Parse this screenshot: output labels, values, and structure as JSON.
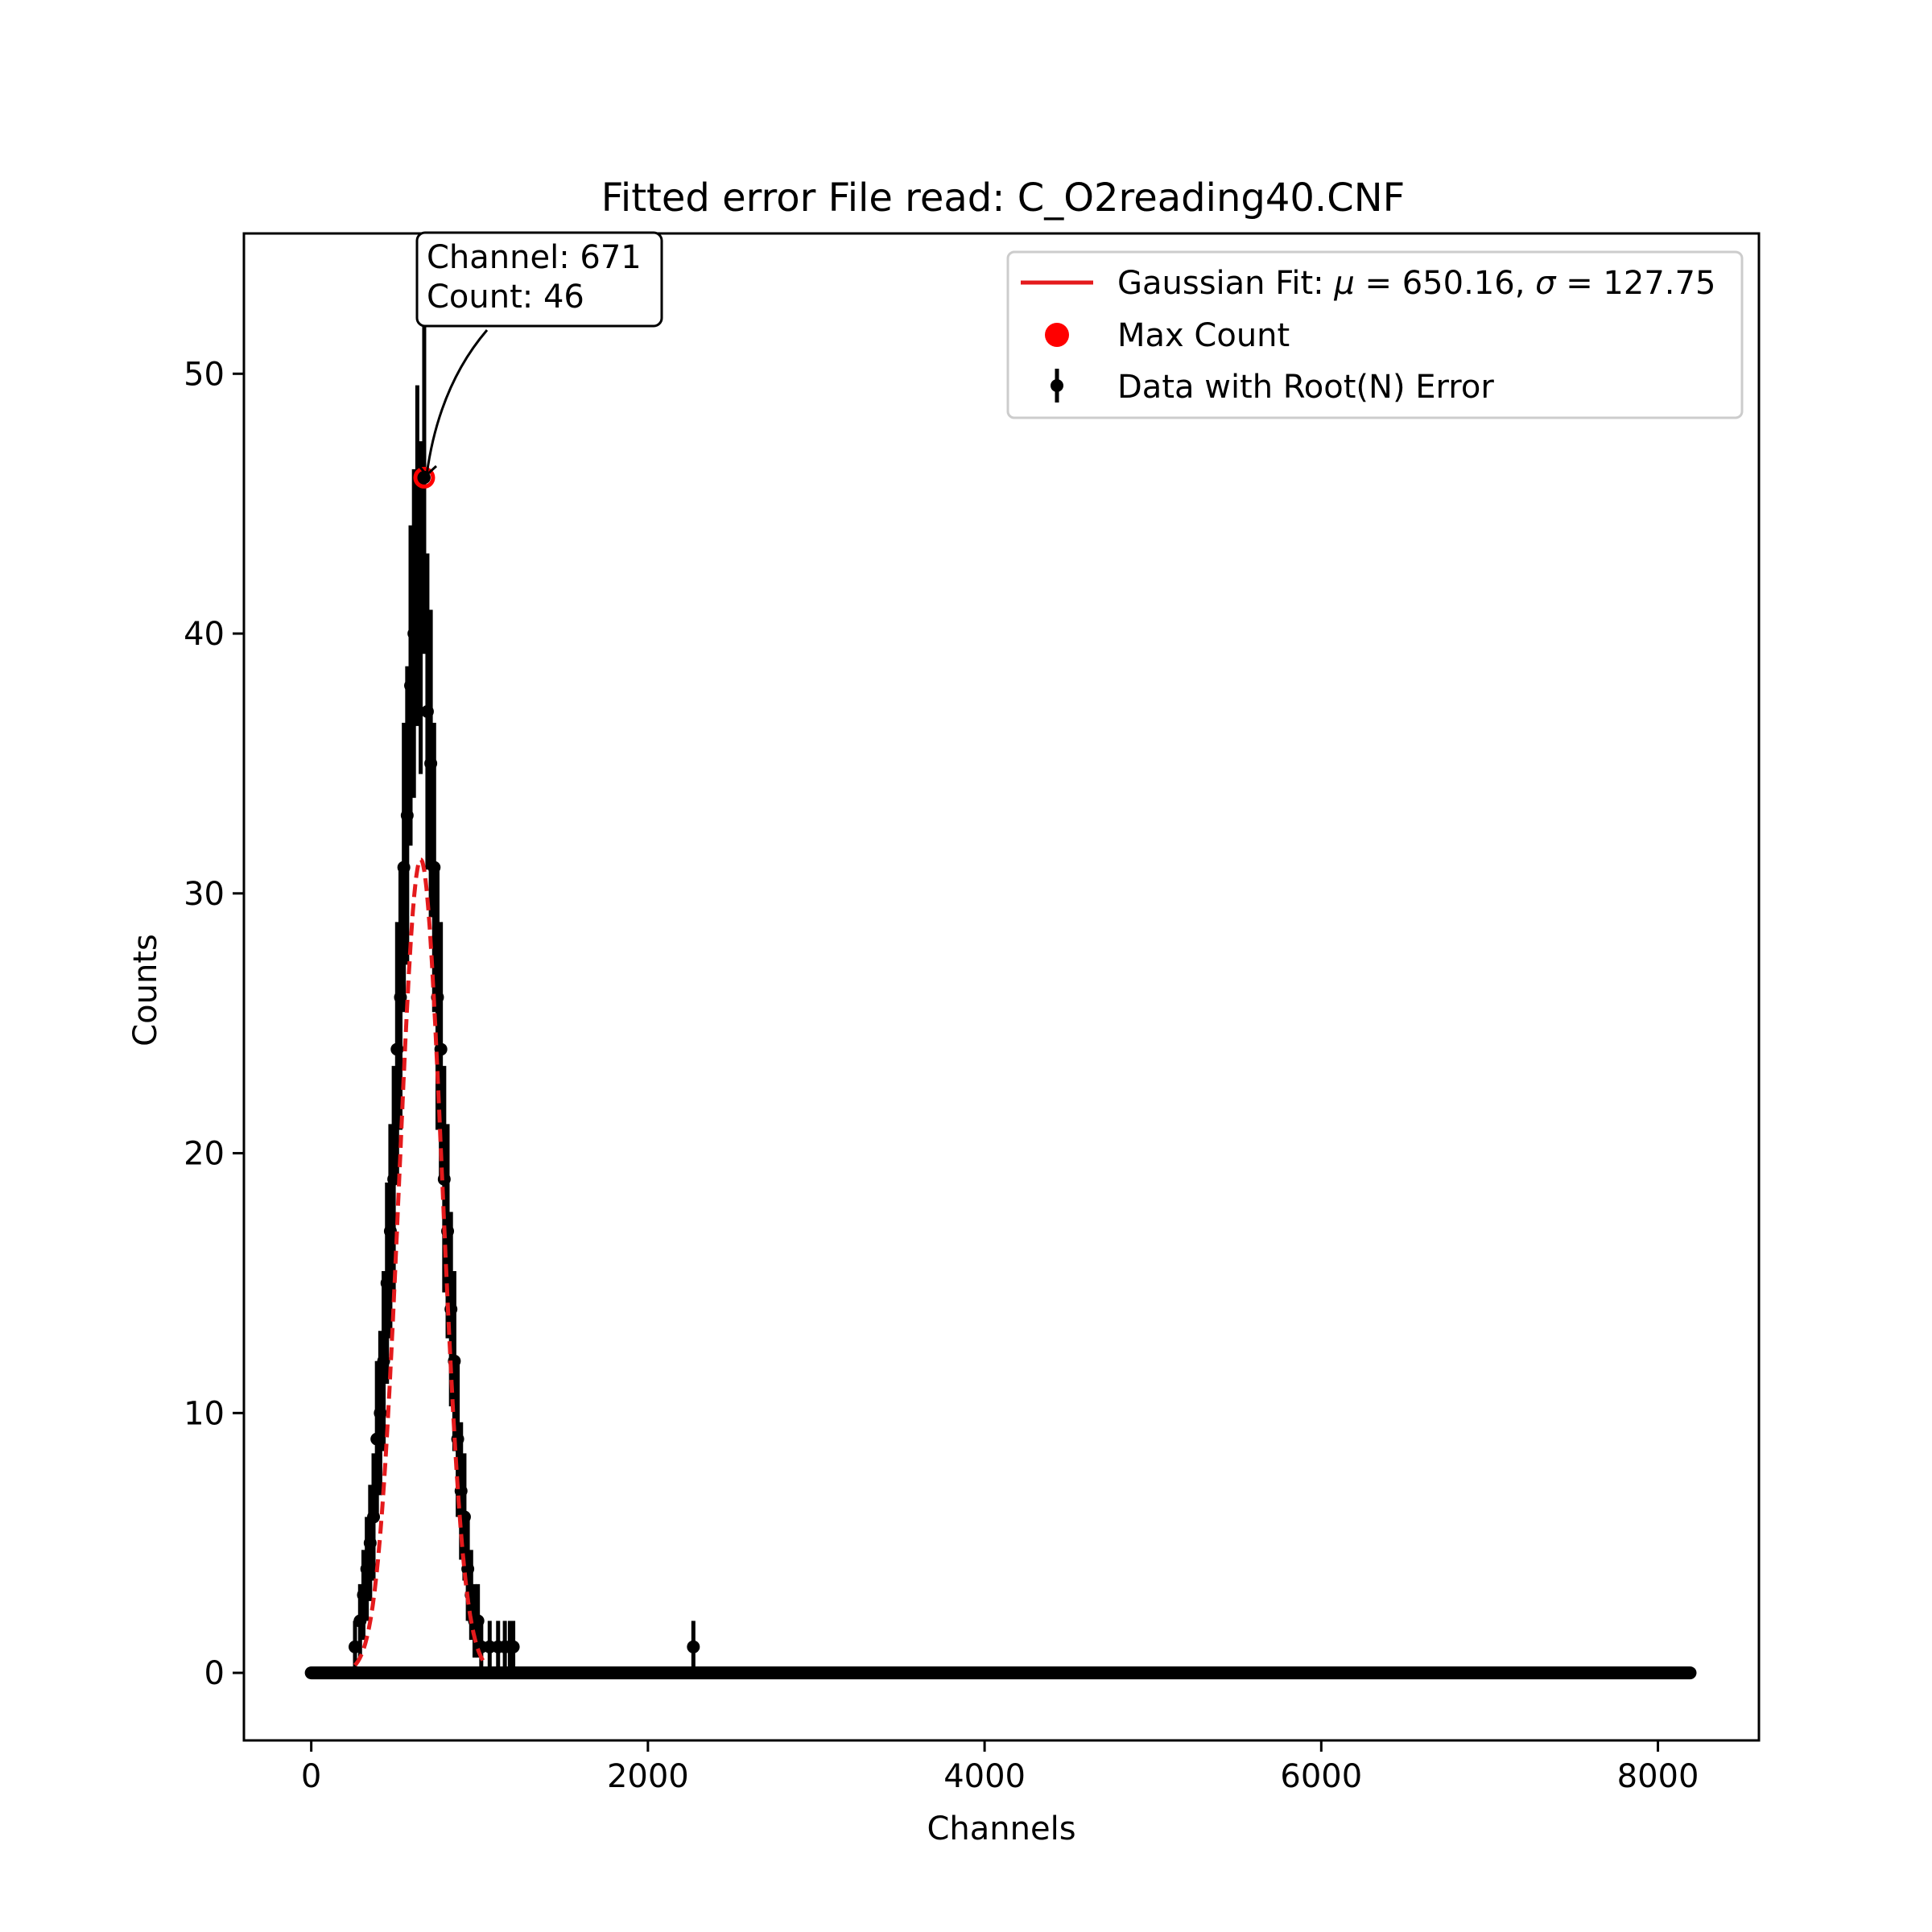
{
  "chart_data": {
    "type": "scatter",
    "title": "Fitted error File read: C_O2reading40.CNF",
    "xlabel": "Channels",
    "ylabel": "Counts",
    "xlim": [
      -400,
      8600
    ],
    "ylim": [
      -2.6,
      55.4
    ],
    "xticks": [
      0,
      2000,
      4000,
      6000,
      8000
    ],
    "yticks": [
      0,
      10,
      20,
      30,
      40,
      50
    ],
    "x_range": [
      0,
      8191
    ],
    "legend_position": "upper right",
    "legend": [
      {
        "kind": "line",
        "label_prefix": "Gaussian Fit: ",
        "mu_symbol": "μ",
        "mu_text": " = 650.16, ",
        "sigma_symbol": "σ",
        "sigma_text": " = 127.75",
        "color": "#e41a1c"
      },
      {
        "kind": "marker",
        "label": "Max Count",
        "color": "#ff0000"
      },
      {
        "kind": "errorbar",
        "label": "Data with Root(N) Error",
        "color": "#000000"
      }
    ],
    "series": [
      {
        "name": "Data with Root(N) Error",
        "error": "sqrt(N)",
        "x": [
          260,
          290,
          310,
          330,
          350,
          370,
          390,
          410,
          430,
          450,
          470,
          490,
          510,
          530,
          550,
          570,
          590,
          610,
          630,
          650,
          671,
          690,
          710,
          730,
          750,
          770,
          790,
          810,
          830,
          850,
          870,
          890,
          910,
          930,
          950,
          970,
          990,
          1010,
          1060,
          1110,
          1150,
          1180,
          1200,
          2270
        ],
        "y": [
          1,
          2,
          3,
          4,
          5,
          6,
          9,
          10,
          12,
          15,
          17,
          19,
          24,
          26,
          31,
          33,
          38,
          40,
          43,
          41,
          46,
          37,
          35,
          31,
          26,
          24,
          19,
          17,
          14,
          12,
          9,
          7,
          6,
          4,
          3,
          2,
          2,
          1,
          1,
          1,
          1,
          1,
          1,
          1
        ],
        "baseline_value": 0,
        "color": "#000000"
      },
      {
        "name": "Gaussian Fit",
        "fit": "gaussian",
        "amplitude": 31.3,
        "mu": 650.16,
        "sigma": 127.75,
        "x_range": [
          260,
          1040
        ],
        "color": "#e41a1c",
        "style": "dashed"
      }
    ],
    "max_point": {
      "x": 671,
      "y": 46,
      "color": "#ff0000"
    },
    "annotation": {
      "line1": "Channel: 671",
      "line2": "Count: 46"
    }
  }
}
